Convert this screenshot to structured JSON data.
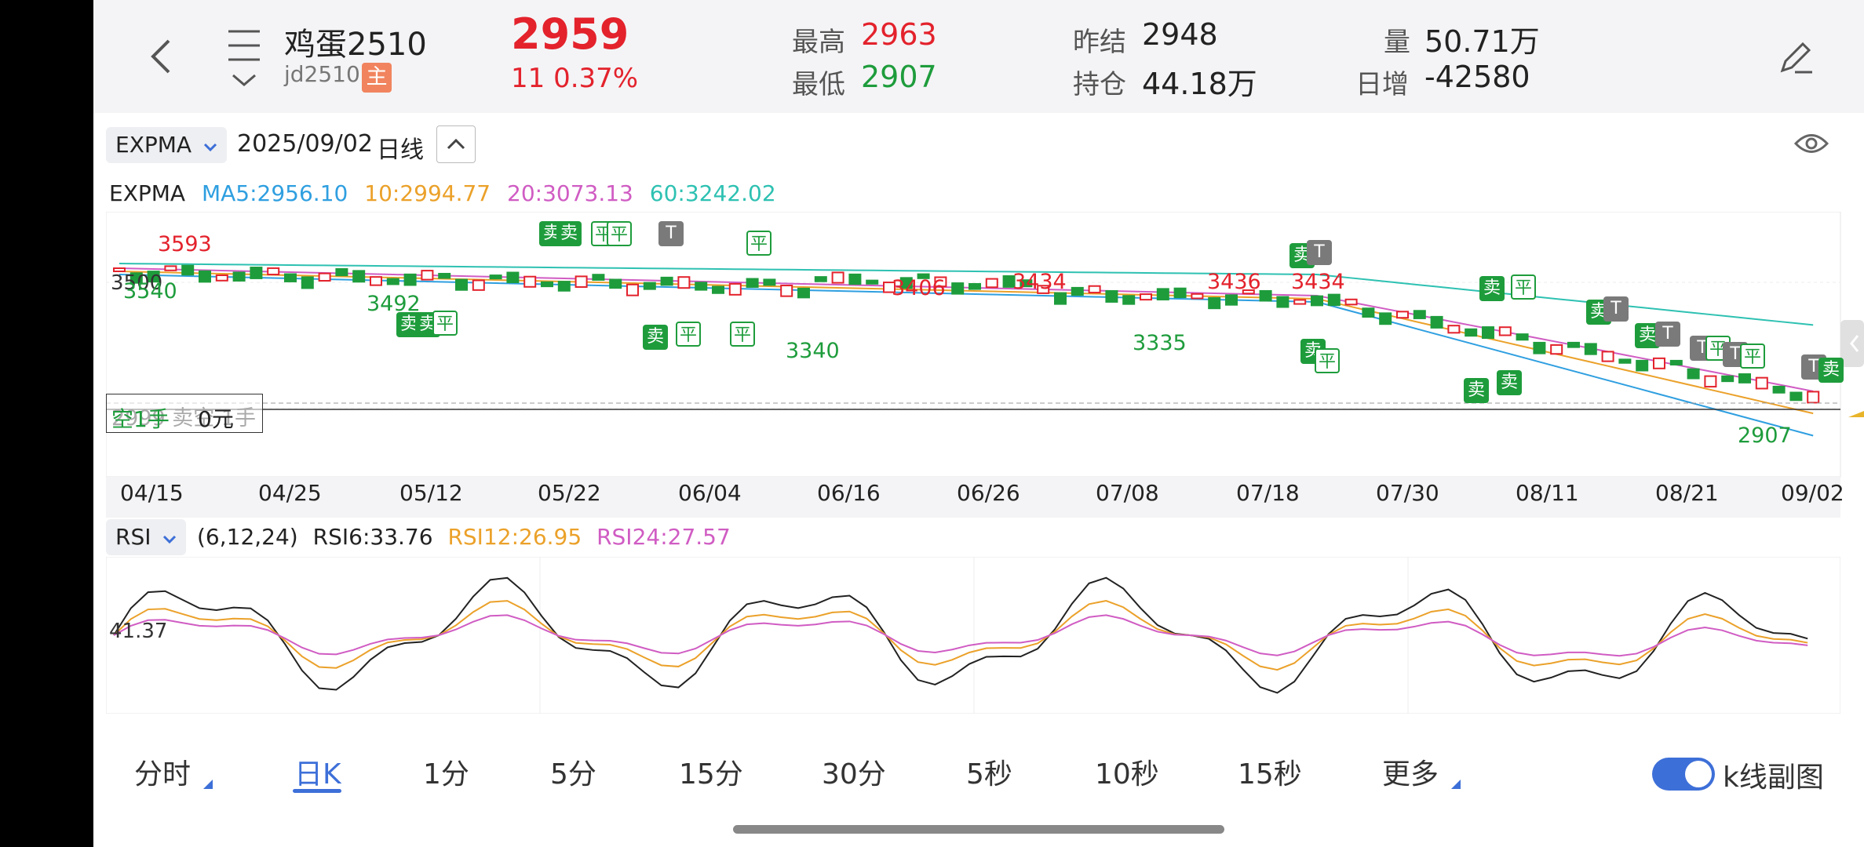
{
  "header": {
    "back_icon": "chevron-left-icon",
    "menu_icon": "hamburger-menu-icon",
    "symbol_name": "鸡蛋2510",
    "symbol_code": "jd2510",
    "badge": "主",
    "price": "2959",
    "change": "11  0.37%",
    "high_label": "最高",
    "high": "2963",
    "low_label": "最低",
    "low": "2907",
    "prev_settle_label": "昨结",
    "prev_settle": "2948",
    "open_interest_label": "持仓",
    "open_interest": "44.18万",
    "volume_label": "量",
    "volume": "50.71万",
    "daily_change_label": "日增",
    "daily_change": "-42580",
    "edit_icon": "pencil-icon"
  },
  "main_chart": {
    "indicator": "EXPMA",
    "date": "2025/09/02",
    "period": "日线",
    "legend_title": "EXPMA",
    "ma5": "MA5:2956.10",
    "ma10": "10:2994.77",
    "ma20": "20:3073.13",
    "ma60": "60:3242.02",
    "axis_label": "3500",
    "position_text": "空1手",
    "pnl_text": "0元",
    "position_overlay": "2999  卖空 1手",
    "price_labels": [
      {
        "text": "3593",
        "color": "red"
      },
      {
        "text": "3540",
        "color": "green"
      },
      {
        "text": "3492",
        "color": "green"
      },
      {
        "text": "3340",
        "color": "green"
      },
      {
        "text": "3406",
        "color": "red"
      },
      {
        "text": "3434",
        "color": "red"
      },
      {
        "text": "3335",
        "color": "green"
      },
      {
        "text": "3436",
        "color": "red"
      },
      {
        "text": "3434",
        "color": "red"
      },
      {
        "text": "2907",
        "color": "green"
      }
    ],
    "dates": [
      "04/15",
      "04/25",
      "05/12",
      "05/22",
      "06/04",
      "06/16",
      "06/26",
      "07/08",
      "07/18",
      "07/30",
      "08/11",
      "08/21",
      "09/02"
    ],
    "trade_markers": {
      "sell": "卖",
      "close": "平",
      "t": "T"
    },
    "colors": {
      "up": "#e3222c",
      "down": "#1e9c3c",
      "ma5": "#2f9fe0",
      "ma10": "#eba12a",
      "ma20": "#d05cc3",
      "ma60": "#2ec1b2"
    }
  },
  "rsi_chart": {
    "indicator": "RSI",
    "params": "(6,12,24)",
    "rsi6": "RSI6:33.76",
    "rsi12": "RSI12:26.95",
    "rsi24": "RSI24:27.57",
    "axis_label": "41.37"
  },
  "tabs": [
    {
      "label": "分时",
      "active": false,
      "more": true
    },
    {
      "label": "日K",
      "active": true,
      "more": false
    },
    {
      "label": "1分",
      "active": false,
      "more": false
    },
    {
      "label": "5分",
      "active": false,
      "more": false
    },
    {
      "label": "15分",
      "active": false,
      "more": false
    },
    {
      "label": "30分",
      "active": false,
      "more": false
    },
    {
      "label": "5秒",
      "active": false,
      "more": false
    },
    {
      "label": "10秒",
      "active": false,
      "more": false
    },
    {
      "label": "15秒",
      "active": false,
      "more": false
    },
    {
      "label": "更多",
      "active": false,
      "more": true
    }
  ],
  "toggle": {
    "label": "k线副图",
    "on": true
  }
}
